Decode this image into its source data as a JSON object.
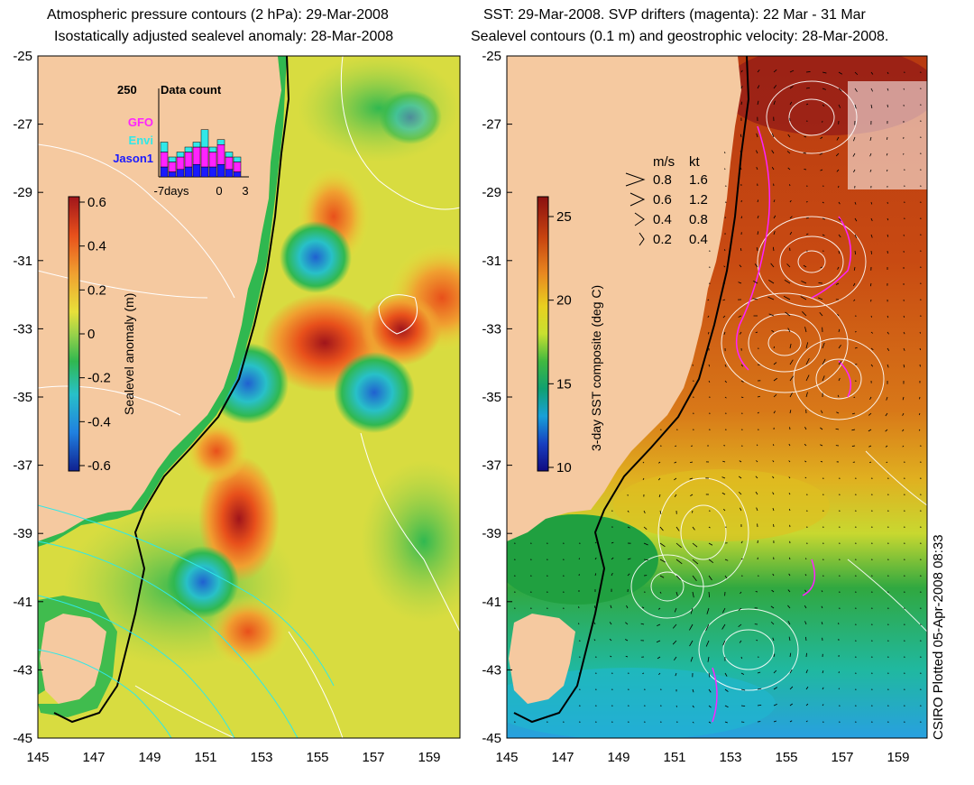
{
  "left_panel": {
    "title_line1": "Atmospheric pressure contours (2 hPa): 29-Mar-2008",
    "title_line2": "Isostatically adjusted sealevel anomaly: 28-Mar-2008",
    "colorbar": {
      "label": "Sealevel anomaly (m)",
      "ticks": [
        "0.6",
        "0.4",
        "0.2",
        "0",
        "-0.2",
        "-0.4",
        "-0.6"
      ],
      "colors": [
        "#a0151b",
        "#e8501b",
        "#f0a030",
        "#e8e03a",
        "#9ad24a",
        "#30b850",
        "#28c0c8",
        "#2080e0",
        "#102090"
      ]
    },
    "inset": {
      "title": "Data count",
      "max_label": "250",
      "legend": [
        {
          "name": "GFO",
          "color": "#ff22ff"
        },
        {
          "name": "Envi",
          "color": "#30e8e8"
        },
        {
          "name": "Jason1",
          "color": "#1a1aff"
        }
      ],
      "x_ticks": [
        "-7days",
        "0",
        "3"
      ]
    }
  },
  "right_panel": {
    "title_line1": "SST: 29-Mar-2008. SVP drifters (magenta): 22 Mar - 31 Mar",
    "title_line2": "Sealevel contours (0.1 m) and geostrophic velocity: 28-Mar-2008.",
    "colorbar": {
      "label": "3-day SST composite (deg C)",
      "ticks": [
        "25",
        "20",
        "15",
        "10"
      ],
      "colors": [
        "#8a1010",
        "#c84410",
        "#e88820",
        "#e8d020",
        "#c8e030",
        "#40b840",
        "#10a070",
        "#18a0d8",
        "#1840c0",
        "#100a80"
      ]
    },
    "velocity_legend": {
      "header_ms": "m/s",
      "header_kt": "kt",
      "rows": [
        {
          "ms": "0.8",
          "kt": "1.6"
        },
        {
          "ms": "0.6",
          "kt": "1.2"
        },
        {
          "ms": "0.4",
          "kt": "0.8"
        },
        {
          "ms": "0.2",
          "kt": "0.4"
        }
      ]
    }
  },
  "axes": {
    "y_ticks": [
      "-25",
      "-27",
      "-29",
      "-31",
      "-33",
      "-35",
      "-37",
      "-39",
      "-41",
      "-43",
      "-45"
    ],
    "x_ticks": [
      "145",
      "147",
      "149",
      "151",
      "153",
      "155",
      "157",
      "159"
    ]
  },
  "credit": "CSIRO Plotted 05-Apr-2008 08:33",
  "colors": {
    "land": "#f5c9a0",
    "coast_line": "#000000"
  }
}
